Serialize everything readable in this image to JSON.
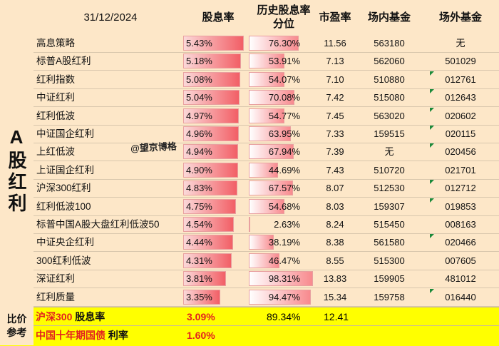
{
  "header": {
    "date": "31/12/2024",
    "yield": "股息率",
    "percentile": "历史股息率分位",
    "pe": "市盈率",
    "exchange_fund": "场内基金",
    "otc_fund": "场外基金"
  },
  "side_label": "A股红利",
  "watermark": "@望京博格",
  "rows": [
    {
      "name": "高息策略",
      "yield": "5.43%",
      "yield_value": 5.43,
      "percentile": "76.30%",
      "percentile_value": 76.3,
      "pe": "11.56",
      "exchange_fund": "563180",
      "otc_fund": "无",
      "flag": false
    },
    {
      "name": "标普A股红利",
      "yield": "5.18%",
      "yield_value": 5.18,
      "percentile": "53.91%",
      "percentile_value": 53.91,
      "pe": "7.13",
      "exchange_fund": "562060",
      "otc_fund": "501029",
      "flag": false
    },
    {
      "name": "红利指数",
      "yield": "5.08%",
      "yield_value": 5.08,
      "percentile": "54.07%",
      "percentile_value": 54.07,
      "pe": "7.10",
      "exchange_fund": "510880",
      "otc_fund": "012761",
      "flag": true
    },
    {
      "name": "中证红利",
      "yield": "5.04%",
      "yield_value": 5.04,
      "percentile": "70.08%",
      "percentile_value": 70.08,
      "pe": "7.42",
      "exchange_fund": "515080",
      "otc_fund": "012643",
      "flag": true
    },
    {
      "name": "红利低波",
      "yield": "4.97%",
      "yield_value": 4.97,
      "percentile": "54.77%",
      "percentile_value": 54.77,
      "pe": "7.45",
      "exchange_fund": "563020",
      "otc_fund": "020602",
      "flag": true
    },
    {
      "name": "中证国企红利",
      "yield": "4.96%",
      "yield_value": 4.96,
      "percentile": "63.95%",
      "percentile_value": 63.95,
      "pe": "7.33",
      "exchange_fund": "159515",
      "otc_fund": "020115",
      "flag": true
    },
    {
      "name": "上红低波",
      "yield": "4.94%",
      "yield_value": 4.94,
      "percentile": "67.94%",
      "percentile_value": 67.94,
      "pe": "7.39",
      "exchange_fund": "无",
      "otc_fund": "020456",
      "flag": true
    },
    {
      "name": "上证国企红利",
      "yield": "4.90%",
      "yield_value": 4.9,
      "percentile": "44.69%",
      "percentile_value": 44.69,
      "pe": "7.43",
      "exchange_fund": "510720",
      "otc_fund": "021701",
      "flag": false
    },
    {
      "name": "沪深300红利",
      "yield": "4.83%",
      "yield_value": 4.83,
      "percentile": "67.57%",
      "percentile_value": 67.57,
      "pe": "8.07",
      "exchange_fund": "512530",
      "otc_fund": "012712",
      "flag": true
    },
    {
      "name": "红利低波100",
      "yield": "4.75%",
      "yield_value": 4.75,
      "percentile": "54.68%",
      "percentile_value": 54.68,
      "pe": "8.03",
      "exchange_fund": "159307",
      "otc_fund": "019853",
      "flag": true
    },
    {
      "name": "标普中国A股大盘红利低波50",
      "yield": "4.54%",
      "yield_value": 4.54,
      "percentile": "2.63%",
      "percentile_value": 2.63,
      "pe": "8.24",
      "exchange_fund": "515450",
      "otc_fund": "008163",
      "flag": false
    },
    {
      "name": "中证央企红利",
      "yield": "4.44%",
      "yield_value": 4.44,
      "percentile": "38.19%",
      "percentile_value": 38.19,
      "pe": "8.38",
      "exchange_fund": "561580",
      "otc_fund": "020466",
      "flag": true
    },
    {
      "name": "300红利低波",
      "yield": "4.31%",
      "yield_value": 4.31,
      "percentile": "46.47%",
      "percentile_value": 46.47,
      "pe": "8.55",
      "exchange_fund": "515300",
      "otc_fund": "007605",
      "flag": false
    },
    {
      "name": "深证红利",
      "yield": "3.81%",
      "yield_value": 3.81,
      "percentile": "98.31%",
      "percentile_value": 98.31,
      "pe": "13.83",
      "exchange_fund": "159905",
      "otc_fund": "481012",
      "flag": false
    },
    {
      "name": "红利质量",
      "yield": "3.35%",
      "yield_value": 3.35,
      "percentile": "94.47%",
      "percentile_value": 94.47,
      "pe": "15.34",
      "exchange_fund": "159758",
      "otc_fund": "016440",
      "flag": true
    }
  ],
  "footer": {
    "side_line1": "比价",
    "side_line2": "参考",
    "ref1_name_red": "沪深300",
    "ref1_name_black": " 股息率",
    "ref1_yield": "3.09%",
    "ref1_percentile": "89.34%",
    "ref1_pe": "12.41",
    "ref2_name_red": "中国十年期国债",
    "ref2_name_black": " 利率",
    "ref2_rate": "1.60%"
  },
  "colors": {
    "header_bg": "#fde7c8",
    "bar_red": "#f25f66",
    "highlight": "#ffff00",
    "flag_green": "#1b8a3a"
  }
}
